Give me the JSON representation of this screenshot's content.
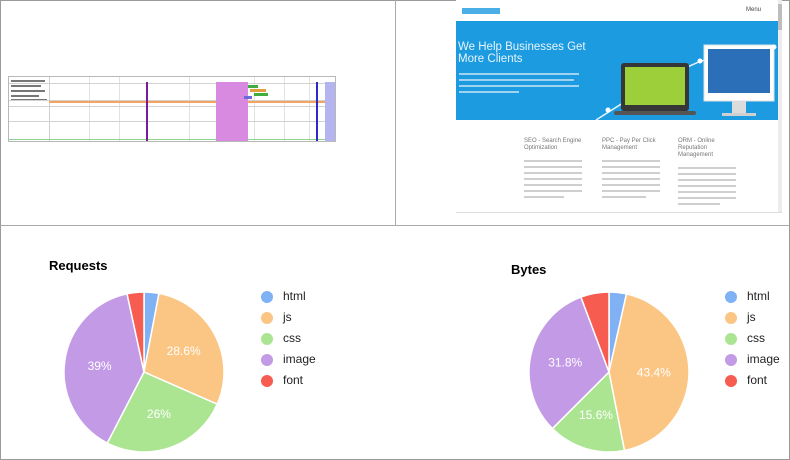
{
  "colors": {
    "html": "#80b1f5",
    "js": "#fbc583",
    "css": "#abe592",
    "image": "#c39ae6",
    "font": "#f75c51"
  },
  "legend": [
    "html",
    "js",
    "css",
    "image",
    "font"
  ],
  "website": {
    "hero_title": "We Help Businesses Get More Clients",
    "nav_label": "Menu",
    "columns": [
      {
        "heading": "SEO - Search Engine Optimization"
      },
      {
        "heading": "PPC - Pay Per Click Management"
      },
      {
        "heading": "ORM - Online Reputation Management"
      }
    ]
  },
  "chart_data": [
    {
      "type": "pie",
      "title": "Requests",
      "categories": [
        "html",
        "js",
        "css",
        "image",
        "font"
      ],
      "values": [
        3,
        28.6,
        26,
        39,
        3.4
      ],
      "data_labels": [
        "",
        "28.6%",
        "26%",
        "39%",
        ""
      ]
    },
    {
      "type": "pie",
      "title": "Bytes",
      "categories": [
        "html",
        "js",
        "css",
        "image",
        "font"
      ],
      "values": [
        3.5,
        43.4,
        15.6,
        31.8,
        5.7
      ],
      "data_labels": [
        "",
        "43.4%",
        "15.6%",
        "31.8%",
        ""
      ]
    }
  ]
}
